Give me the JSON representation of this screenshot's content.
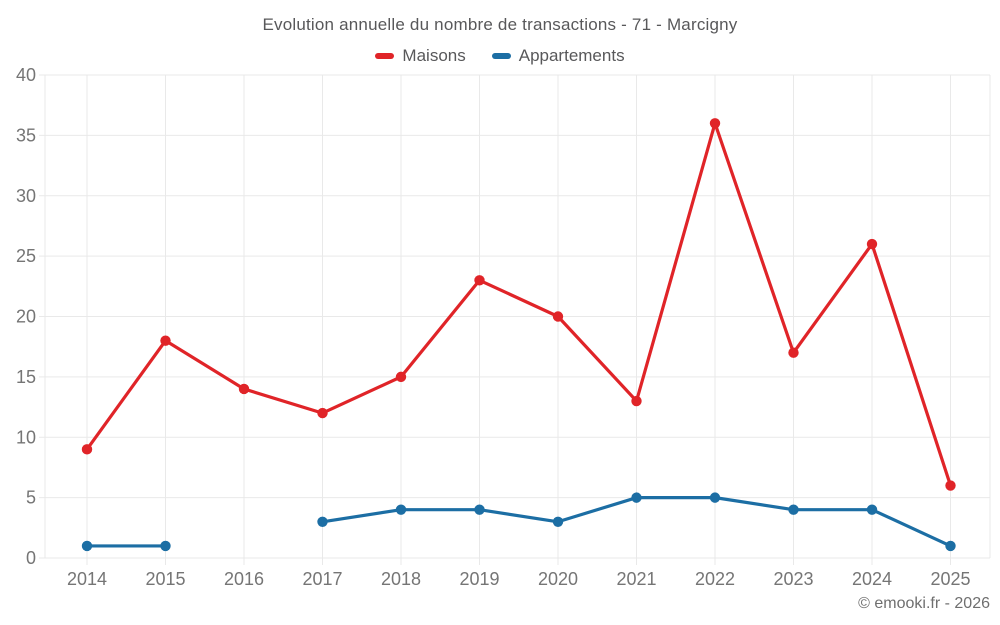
{
  "page": {
    "footer": "© emooki.fr - 2026"
  },
  "chart_data": {
    "type": "line",
    "title": "Evolution annuelle du nombre de transactions - 71 - Marcigny",
    "categories": [
      "2014",
      "2015",
      "2016",
      "2017",
      "2018",
      "2019",
      "2020",
      "2021",
      "2022",
      "2023",
      "2024",
      "2025"
    ],
    "series": [
      {
        "name": "Maisons",
        "color": "#e02428",
        "values": [
          9,
          18,
          14,
          12,
          15,
          23,
          20,
          13,
          36,
          17,
          26,
          6
        ]
      },
      {
        "name": "Appartements",
        "color": "#1c6ea4",
        "values": [
          1,
          1,
          null,
          3,
          4,
          4,
          3,
          5,
          5,
          4,
          4,
          1
        ]
      }
    ],
    "ylim": [
      0,
      40
    ],
    "ytick_step": 5,
    "yticks": [
      0,
      5,
      10,
      15,
      20,
      25,
      30,
      35,
      40
    ],
    "grid": true,
    "legend_position": "top",
    "xlabel": "",
    "ylabel": ""
  },
  "style": {
    "grid_color": "#e9e9e9",
    "axis_label_color": "#757575",
    "title_color": "#58585a",
    "footer_color": "#6f6f6f"
  }
}
